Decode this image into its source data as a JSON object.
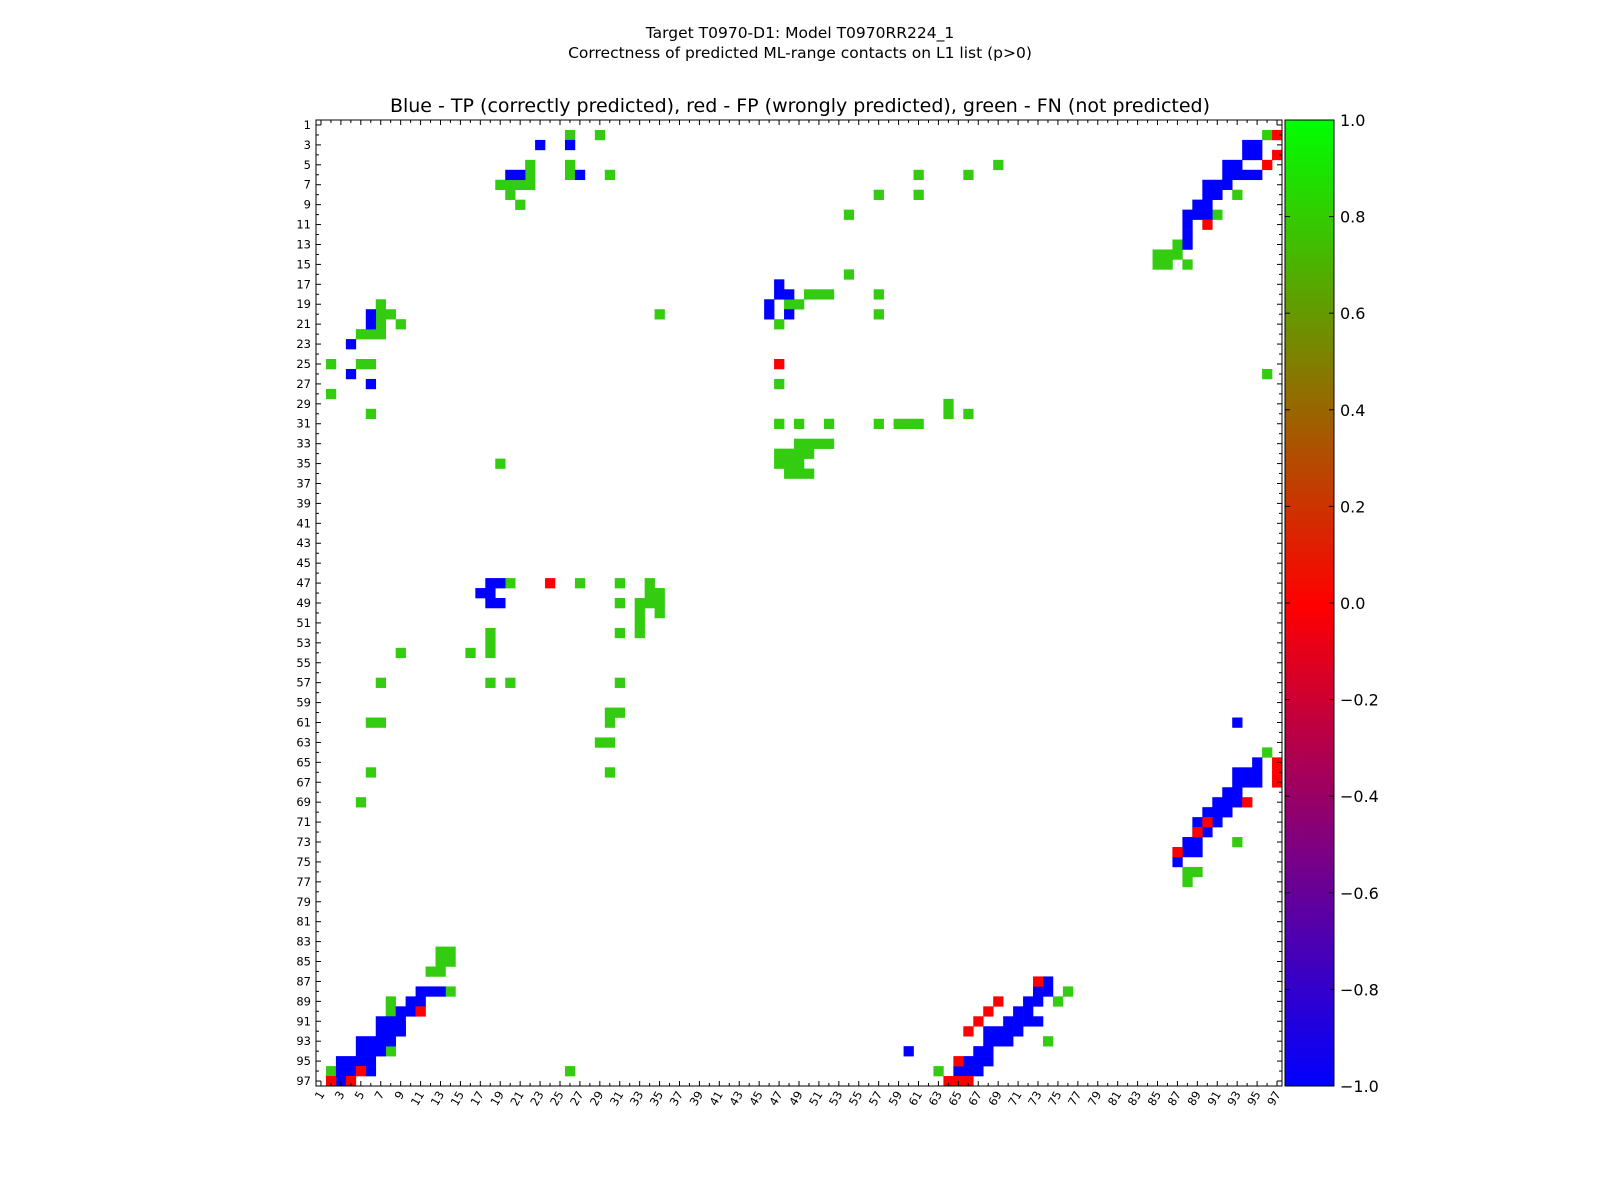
{
  "figure": {
    "suptitle_line1": "Target T0970-D1: Model T0970RR224_1",
    "suptitle_line2": "Correctness of predicted ML-range contacts on L1 list (p>0)"
  },
  "chart_data": {
    "type": "heatmap",
    "title": "Blue - TP (correctly predicted), red - FP (wrongly predicted), green - FN (not predicted)",
    "xlabel": "",
    "ylabel": "",
    "n": 97,
    "xlim": [
      1,
      97
    ],
    "ylim": [
      1,
      97
    ],
    "y_axis_inverted": true,
    "tick_labels": [
      1,
      3,
      5,
      7,
      9,
      11,
      13,
      15,
      17,
      19,
      21,
      23,
      25,
      27,
      29,
      31,
      33,
      35,
      37,
      39,
      41,
      43,
      45,
      47,
      49,
      51,
      53,
      55,
      57,
      59,
      61,
      63,
      65,
      67,
      69,
      71,
      73,
      75,
      77,
      79,
      81,
      83,
      85,
      87,
      89,
      91,
      93,
      95,
      97
    ],
    "legend": [
      {
        "label": "TP (correctly predicted)",
        "color": "#0000ff",
        "value": -1.0
      },
      {
        "label": "FP (wrongly predicted)",
        "color": "#ff0000",
        "value": 0.0
      },
      {
        "label": "FN (not predicted)",
        "color": "#33cc11",
        "value": 0.8
      }
    ],
    "colorbar": {
      "range": [
        -1.0,
        1.0
      ],
      "tick_values": [
        1.0,
        0.8,
        0.6,
        0.4,
        0.2,
        0.0,
        -0.2,
        -0.4,
        -0.6,
        -0.8,
        -1.0
      ],
      "tick_labels": [
        "1.0",
        "0.8",
        "0.6",
        "0.4",
        "0.2",
        "0.0",
        "−0.2",
        "−0.4",
        "−0.6",
        "−0.8",
        "−1.0"
      ],
      "gradient_stops": [
        "#0000ff",
        "#ff0000",
        "#00ff00"
      ]
    },
    "cells": {
      "tp": [
        [
          3,
          23
        ],
        [
          3,
          26
        ],
        [
          6,
          20
        ],
        [
          6,
          21
        ],
        [
          6,
          27
        ],
        [
          17,
          47
        ],
        [
          18,
          47
        ],
        [
          18,
          48
        ],
        [
          19,
          46
        ],
        [
          20,
          46
        ],
        [
          20,
          48
        ],
        [
          20,
          6
        ],
        [
          21,
          6
        ],
        [
          23,
          4
        ],
        [
          26,
          4
        ],
        [
          27,
          6
        ],
        [
          47,
          18
        ],
        [
          47,
          19
        ],
        [
          48,
          17
        ],
        [
          48,
          18
        ],
        [
          49,
          18
        ],
        [
          49,
          19
        ],
        [
          3,
          94
        ],
        [
          3,
          95
        ],
        [
          4,
          94
        ],
        [
          4,
          95
        ],
        [
          5,
          92
        ],
        [
          5,
          93
        ],
        [
          6,
          92
        ],
        [
          6,
          93
        ],
        [
          6,
          94
        ],
        [
          6,
          95
        ],
        [
          7,
          90
        ],
        [
          7,
          91
        ],
        [
          7,
          92
        ],
        [
          8,
          90
        ],
        [
          8,
          91
        ],
        [
          9,
          89
        ],
        [
          9,
          90
        ],
        [
          10,
          88
        ],
        [
          10,
          89
        ],
        [
          10,
          90
        ],
        [
          11,
          88
        ],
        [
          12,
          88
        ],
        [
          13,
          88
        ],
        [
          61,
          93
        ],
        [
          65,
          95
        ],
        [
          66,
          93
        ],
        [
          66,
          94
        ],
        [
          66,
          95
        ],
        [
          67,
          93
        ],
        [
          67,
          94
        ],
        [
          67,
          95
        ],
        [
          68,
          92
        ],
        [
          68,
          93
        ],
        [
          69,
          91
        ],
        [
          69,
          92
        ],
        [
          69,
          93
        ],
        [
          70,
          90
        ],
        [
          70,
          91
        ],
        [
          70,
          92
        ],
        [
          71,
          89
        ],
        [
          71,
          90
        ],
        [
          71,
          91
        ],
        [
          72,
          89
        ],
        [
          72,
          90
        ],
        [
          73,
          88
        ],
        [
          73,
          89
        ],
        [
          74,
          87
        ],
        [
          74,
          88
        ],
        [
          74,
          89
        ],
        [
          75,
          87
        ],
        [
          87,
          74
        ],
        [
          88,
          11
        ],
        [
          88,
          12
        ],
        [
          88,
          13
        ],
        [
          88,
          73
        ],
        [
          88,
          74
        ],
        [
          89,
          10
        ],
        [
          89,
          11
        ],
        [
          89,
          72
        ],
        [
          89,
          73
        ],
        [
          90,
          9
        ],
        [
          90,
          10
        ],
        [
          90,
          71
        ],
        [
          90,
          72
        ],
        [
          91,
          7
        ],
        [
          91,
          8
        ],
        [
          91,
          9
        ],
        [
          91,
          70
        ],
        [
          91,
          71
        ],
        [
          91,
          72
        ],
        [
          91,
          73
        ],
        [
          92,
          7
        ],
        [
          92,
          8
        ],
        [
          92,
          9
        ],
        [
          92,
          68
        ],
        [
          92,
          69
        ],
        [
          92,
          70
        ],
        [
          92,
          71
        ],
        [
          93,
          5
        ],
        [
          93,
          6
        ],
        [
          93,
          7
        ],
        [
          93,
          8
        ],
        [
          93,
          68
        ],
        [
          93,
          69
        ],
        [
          93,
          70
        ],
        [
          94,
          5
        ],
        [
          94,
          6
        ],
        [
          94,
          7
        ],
        [
          94,
          60
        ],
        [
          94,
          67
        ],
        [
          94,
          68
        ],
        [
          95,
          3
        ],
        [
          95,
          4
        ],
        [
          95,
          5
        ],
        [
          95,
          6
        ],
        [
          95,
          66
        ],
        [
          95,
          67
        ],
        [
          95,
          68
        ],
        [
          96,
          3
        ],
        [
          96,
          4
        ],
        [
          96,
          6
        ],
        [
          96,
          65
        ],
        [
          96,
          66
        ],
        [
          96,
          67
        ],
        [
          97,
          3
        ]
      ],
      "fp": [
        [
          2,
          97
        ],
        [
          4,
          97
        ],
        [
          5,
          96
        ],
        [
          11,
          90
        ],
        [
          25,
          47
        ],
        [
          47,
          24
        ],
        [
          65,
          97
        ],
        [
          66,
          97
        ],
        [
          67,
          97
        ],
        [
          69,
          94
        ],
        [
          71,
          90
        ],
        [
          72,
          89
        ],
        [
          74,
          87
        ],
        [
          87,
          73
        ],
        [
          89,
          69
        ],
        [
          90,
          11
        ],
        [
          90,
          68
        ],
        [
          91,
          67
        ],
        [
          92,
          66
        ],
        [
          95,
          65
        ],
        [
          96,
          5
        ],
        [
          97,
          2
        ],
        [
          97,
          4
        ],
        [
          97,
          64
        ],
        [
          97,
          65
        ],
        [
          97,
          66
        ]
      ],
      "fn": [
        [
          2,
          26
        ],
        [
          2,
          29
        ],
        [
          2,
          96
        ],
        [
          5,
          22
        ],
        [
          5,
          26
        ],
        [
          5,
          69
        ],
        [
          6,
          22
        ],
        [
          6,
          26
        ],
        [
          6,
          30
        ],
        [
          6,
          61
        ],
        [
          6,
          66
        ],
        [
          7,
          19
        ],
        [
          7,
          20
        ],
        [
          7,
          21
        ],
        [
          7,
          22
        ],
        [
          8,
          20
        ],
        [
          8,
          57
        ],
        [
          8,
          61
        ],
        [
          8,
          93
        ],
        [
          9,
          21
        ],
        [
          9,
          89
        ],
        [
          10,
          54
        ],
        [
          10,
          91
        ],
        [
          13,
          87
        ],
        [
          14,
          85
        ],
        [
          14,
          86
        ],
        [
          14,
          87
        ],
        [
          15,
          85
        ],
        [
          15,
          86
        ],
        [
          15,
          88
        ],
        [
          16,
          54
        ],
        [
          18,
          50
        ],
        [
          18,
          51
        ],
        [
          18,
          52
        ],
        [
          18,
          57
        ],
        [
          19,
          7
        ],
        [
          19,
          48
        ],
        [
          19,
          49
        ],
        [
          20,
          7
        ],
        [
          20,
          8
        ],
        [
          20,
          35
        ],
        [
          20,
          57
        ],
        [
          21,
          7
        ],
        [
          21,
          9
        ],
        [
          21,
          47
        ],
        [
          22,
          5
        ],
        [
          22,
          6
        ],
        [
          22,
          7
        ],
        [
          25,
          2
        ],
        [
          25,
          5
        ],
        [
          25,
          6
        ],
        [
          26,
          96
        ],
        [
          27,
          47
        ],
        [
          28,
          2
        ],
        [
          29,
          64
        ],
        [
          30,
          6
        ],
        [
          30,
          64
        ],
        [
          30,
          66
        ],
        [
          31,
          47
        ],
        [
          31,
          49
        ],
        [
          31,
          52
        ],
        [
          31,
          57
        ],
        [
          31,
          59
        ],
        [
          31,
          60
        ],
        [
          31,
          61
        ],
        [
          33,
          49
        ],
        [
          33,
          50
        ],
        [
          33,
          51
        ],
        [
          33,
          52
        ],
        [
          34,
          47
        ],
        [
          34,
          48
        ],
        [
          34,
          49
        ],
        [
          34,
          50
        ],
        [
          35,
          19
        ],
        [
          35,
          47
        ],
        [
          35,
          48
        ],
        [
          35,
          49
        ],
        [
          36,
          48
        ],
        [
          36,
          49
        ],
        [
          36,
          50
        ],
        [
          47,
          20
        ],
        [
          47,
          27
        ],
        [
          47,
          31
        ],
        [
          47,
          34
        ],
        [
          48,
          34
        ],
        [
          48,
          35
        ],
        [
          49,
          31
        ],
        [
          49,
          33
        ],
        [
          49,
          34
        ],
        [
          49,
          35
        ],
        [
          50,
          33
        ],
        [
          50,
          35
        ],
        [
          51,
          33
        ],
        [
          52,
          18
        ],
        [
          52,
          31
        ],
        [
          52,
          33
        ],
        [
          53,
          18
        ],
        [
          54,
          9
        ],
        [
          54,
          16
        ],
        [
          54,
          18
        ],
        [
          57,
          7
        ],
        [
          57,
          18
        ],
        [
          57,
          20
        ],
        [
          57,
          31
        ],
        [
          60,
          30
        ],
        [
          60,
          31
        ],
        [
          61,
          6
        ],
        [
          61,
          7
        ],
        [
          61,
          30
        ],
        [
          63,
          29
        ],
        [
          63,
          30
        ],
        [
          64,
          96
        ],
        [
          66,
          6
        ],
        [
          66,
          30
        ],
        [
          69,
          5
        ],
        [
          73,
          93
        ],
        [
          76,
          88
        ],
        [
          76,
          89
        ],
        [
          77,
          88
        ],
        [
          84,
          13
        ],
        [
          84,
          14
        ],
        [
          85,
          13
        ],
        [
          85,
          14
        ],
        [
          86,
          12
        ],
        [
          86,
          13
        ],
        [
          88,
          14
        ],
        [
          88,
          76
        ],
        [
          89,
          8
        ],
        [
          89,
          75
        ],
        [
          90,
          8
        ],
        [
          92,
          9
        ],
        [
          93,
          74
        ],
        [
          94,
          8
        ],
        [
          96,
          2
        ],
        [
          96,
          26
        ],
        [
          96,
          63
        ]
      ]
    }
  }
}
